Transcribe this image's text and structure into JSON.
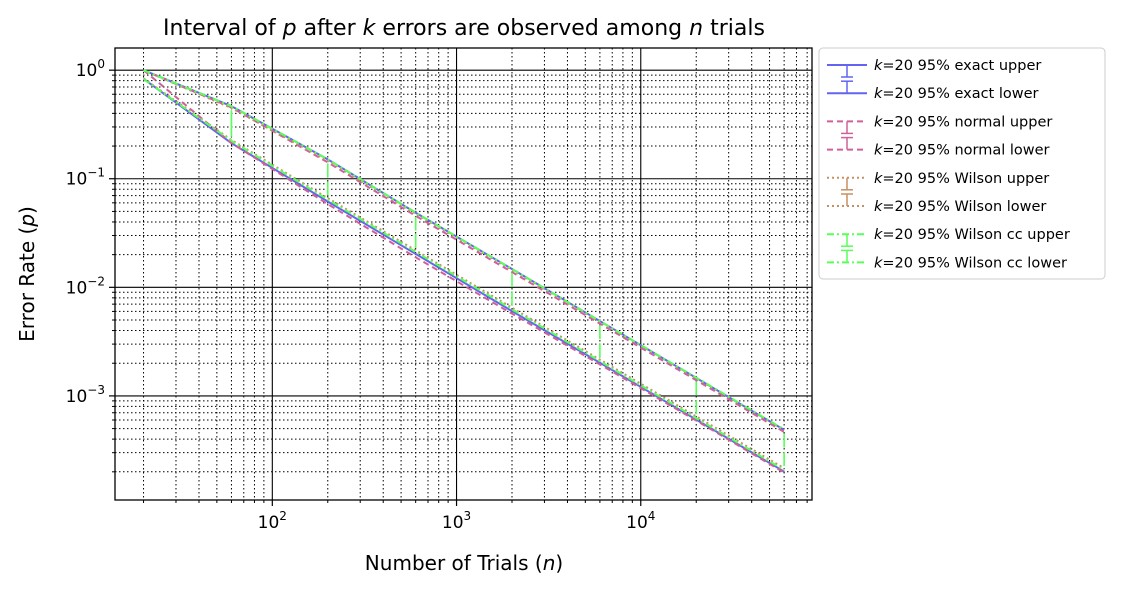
{
  "chart_data": {
    "type": "line",
    "title": "Interval of p after k errors are observed among n trials",
    "xlabel": "Number of Trials (n)",
    "ylabel": "Error Rate (p)",
    "x_scale": "log",
    "y_scale": "log",
    "xlim": [
      14,
      85000
    ],
    "ylim": [
      0.00011,
      1.6
    ],
    "x_ticks": [
      {
        "value": 100,
        "base": "10",
        "exp": "2"
      },
      {
        "value": 1000,
        "base": "10",
        "exp": "3"
      },
      {
        "value": 10000,
        "base": "10",
        "exp": "4"
      }
    ],
    "y_ticks": [
      {
        "value": 1,
        "base": "10",
        "exp": "0"
      },
      {
        "value": 0.1,
        "base": "10",
        "exp": "−1"
      },
      {
        "value": 0.01,
        "base": "10",
        "exp": "−2"
      },
      {
        "value": 0.001,
        "base": "10",
        "exp": "−3"
      }
    ],
    "grid": {
      "major": true,
      "minor": true
    },
    "legend_position": "outside right, top",
    "x": [
      20,
      60,
      200,
      600,
      2000,
      6000,
      20000,
      60000
    ],
    "series": [
      {
        "name": "k=20 95% exact upper",
        "color": "#6464f0",
        "dash": "solid",
        "values": [
          1.0,
          0.466,
          0.1509,
          0.0486,
          0.01474,
          0.00489,
          0.001464,
          0.000487
        ]
      },
      {
        "name": "k=20 95% exact lower",
        "color": "#6464f0",
        "dash": "solid",
        "values": [
          0.832,
          0.2125,
          0.0617,
          0.0203,
          0.00604,
          0.00202,
          0.000605,
          0.000201
        ]
      },
      {
        "name": "k=20 95% normal upper",
        "color": "#d0609a",
        "dash": "6,4",
        "values": [
          1.0,
          0.453,
          0.1416,
          0.0455,
          0.01382,
          0.00463,
          0.001395,
          0.000466
        ]
      },
      {
        "name": "k=20 95% normal lower",
        "color": "#d0609a",
        "dash": "6,4",
        "values": [
          1.0,
          0.2132,
          0.0584,
          0.0189,
          0.00572,
          0.00195,
          0.000593,
          0.000197
        ]
      },
      {
        "name": "k=20 95% Wilson upper",
        "color": "#c89060",
        "dash": "2,3",
        "values": [
          1.0,
          0.447,
          0.1463,
          0.0477,
          0.01447,
          0.00483,
          0.001461,
          0.000487
        ]
      },
      {
        "name": "k=20 95% Wilson lower",
        "color": "#c89060",
        "dash": "2,3",
        "values": [
          0.839,
          0.2275,
          0.0663,
          0.0219,
          0.00649,
          0.00216,
          0.000647,
          0.000216
        ]
      },
      {
        "name": "k=20 95% Wilson cc upper",
        "color": "#58ff58",
        "dash": "7,3,2,3",
        "values": [
          1.0,
          0.466,
          0.1508,
          0.0487,
          0.01475,
          0.00488,
          0.001475,
          0.000491
        ]
      },
      {
        "name": "k=20 95% Wilson cc lower",
        "color": "#58ff58",
        "dash": "7,3,2,3",
        "values": [
          0.826,
          0.2236,
          0.0643,
          0.0212,
          0.00628,
          0.00209,
          0.000625,
          0.000208
        ]
      }
    ],
    "legend": {
      "k_label": "k"
    }
  }
}
